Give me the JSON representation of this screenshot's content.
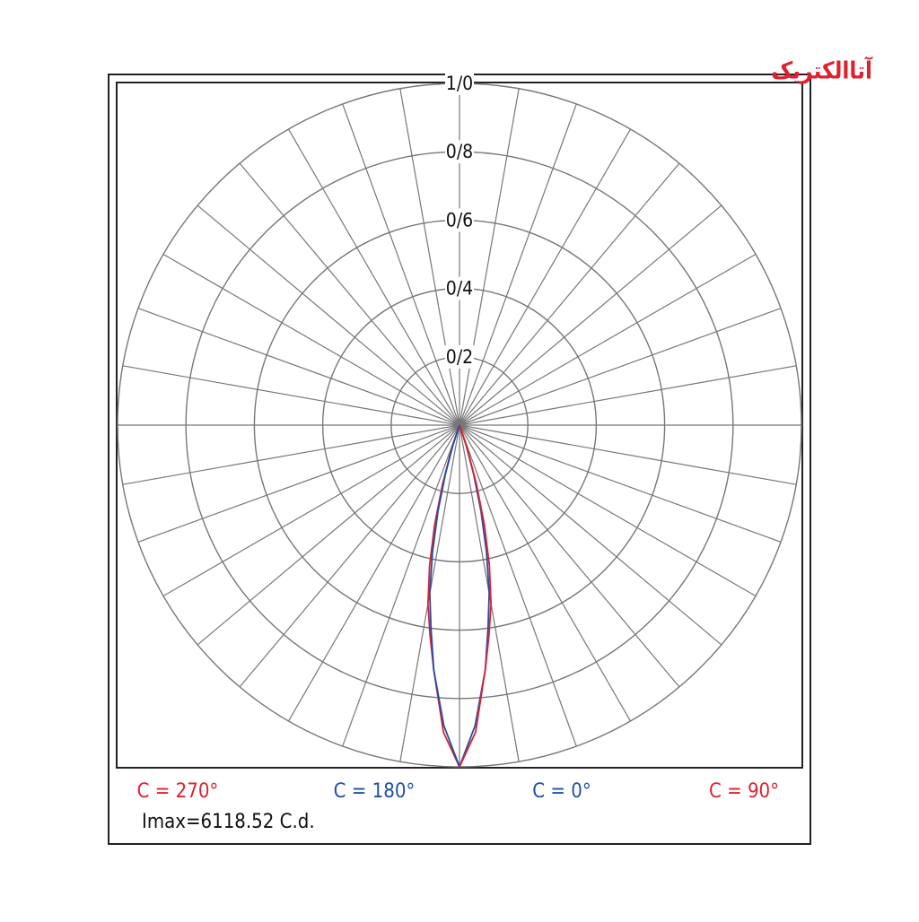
{
  "chart_data": {
    "type": "polar",
    "logo": "آتاالکتریک",
    "note": "Imax=6118.52 C.d.",
    "rlim": [
      0,
      1
    ],
    "rticks": [
      {
        "value": 0.2,
        "label": "0/2"
      },
      {
        "value": 0.4,
        "label": "0/4"
      },
      {
        "value": 0.6,
        "label": "0/6"
      },
      {
        "value": 0.8,
        "label": "0/8"
      },
      {
        "value": 1.0,
        "label": "1/0"
      }
    ],
    "thetaticks": [
      0,
      10,
      20,
      30,
      40,
      50,
      60,
      70,
      80,
      90,
      100,
      110,
      120,
      130,
      140,
      150,
      160,
      170,
      180,
      190,
      200,
      210,
      220,
      230,
      240,
      250,
      260,
      270,
      280,
      290,
      300,
      310,
      320,
      330,
      340,
      350
    ],
    "x": [
      0,
      3,
      6,
      8,
      10,
      12,
      14,
      16,
      18,
      20,
      25
    ],
    "series": [
      {
        "name": "C = 270°",
        "color": "#e0202e",
        "side": "left",
        "values": [
          1.0,
          0.9,
          0.72,
          0.62,
          0.53,
          0.42,
          0.3,
          0.18,
          0.08,
          0.02,
          0
        ]
      },
      {
        "name": "C = 180°",
        "color": "#1f4fa8",
        "side": "left",
        "values": [
          1.0,
          0.88,
          0.72,
          0.6,
          0.5,
          0.38,
          0.26,
          0.15,
          0.06,
          0.01,
          0
        ]
      },
      {
        "name": "C = 0°",
        "color": "#1f4fa8",
        "side": "right",
        "values": [
          1.0,
          0.88,
          0.72,
          0.6,
          0.5,
          0.38,
          0.26,
          0.15,
          0.06,
          0.01,
          0
        ]
      },
      {
        "name": "C = 90°",
        "color": "#e0202e",
        "side": "right",
        "values": [
          1.0,
          0.9,
          0.72,
          0.62,
          0.53,
          0.42,
          0.3,
          0.18,
          0.08,
          0.02,
          0
        ]
      }
    ]
  }
}
